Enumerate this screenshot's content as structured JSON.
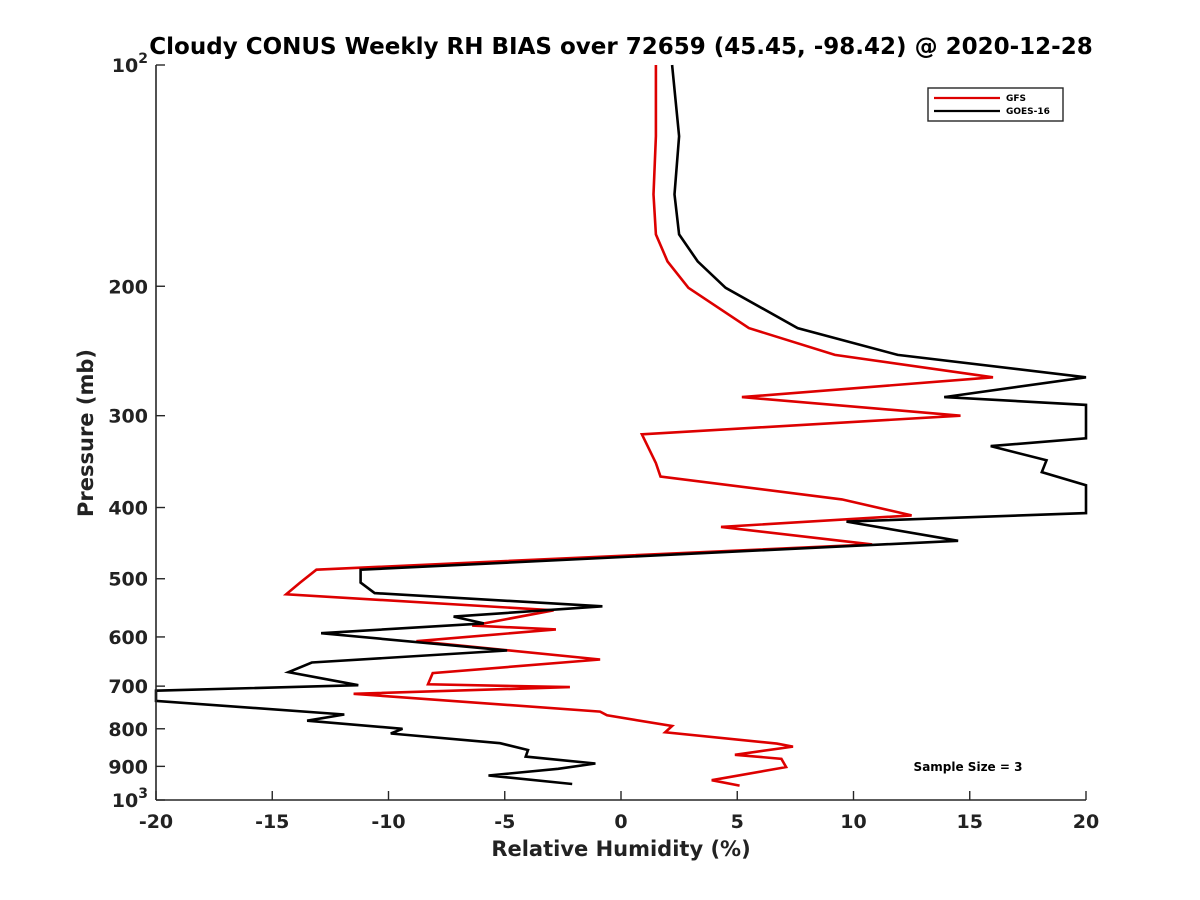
{
  "chart_data": {
    "type": "line",
    "title": "Cloudy CONUS Weekly RH BIAS over 72659 (45.45, -98.42) @ 2020-12-28",
    "xlabel": "Relative Humidity (%)",
    "ylabel": "Pressure (mb)",
    "xlim": [
      -20,
      20
    ],
    "ylim": [
      1000,
      100
    ],
    "y_scale": "log",
    "y_reversed": true,
    "grid": false,
    "legend_position": "top-right",
    "x_ticks": [
      {
        "value": -20,
        "label": "-20"
      },
      {
        "value": -15,
        "label": "-15"
      },
      {
        "value": -10,
        "label": "-10"
      },
      {
        "value": -5,
        "label": "-5"
      },
      {
        "value": 0,
        "label": "0"
      },
      {
        "value": 5,
        "label": "5"
      },
      {
        "value": 10,
        "label": "10"
      },
      {
        "value": 15,
        "label": "15"
      },
      {
        "value": 20,
        "label": "20"
      }
    ],
    "y_ticks": [
      {
        "value": 100,
        "base": "10",
        "exp": "2"
      },
      {
        "value": 200,
        "label": "200"
      },
      {
        "value": 300,
        "label": "300"
      },
      {
        "value": 400,
        "label": "400"
      },
      {
        "value": 500,
        "label": "500"
      },
      {
        "value": 600,
        "label": "600"
      },
      {
        "value": 700,
        "label": "700"
      },
      {
        "value": 800,
        "label": "800"
      },
      {
        "value": 900,
        "label": "900"
      },
      {
        "value": 1000,
        "base": "10",
        "exp": "3"
      }
    ],
    "annotation": "Sample Size = 3",
    "series": [
      {
        "name": "GFS",
        "color": "#dd0000",
        "points": [
          [
            1.5,
            100
          ],
          [
            1.5,
            125
          ],
          [
            1.4,
            150
          ],
          [
            1.5,
            170
          ],
          [
            2.0,
            185
          ],
          [
            2.9,
            201
          ],
          [
            5.5,
            228
          ],
          [
            9.2,
            248
          ],
          [
            16.0,
            266
          ],
          [
            5.2,
            283
          ],
          [
            14.6,
            300
          ],
          [
            0.9,
            318
          ],
          [
            1.5,
            348
          ],
          [
            1.7,
            363
          ],
          [
            9.5,
            390
          ],
          [
            12.5,
            410
          ],
          [
            4.3,
            425
          ],
          [
            10.8,
            449
          ],
          [
            -13.1,
            486
          ],
          [
            -13.8,
            506
          ],
          [
            -14.4,
            525
          ],
          [
            -2.9,
            552
          ],
          [
            -6.4,
            579
          ],
          [
            -2.8,
            586
          ],
          [
            -8.8,
            608
          ],
          [
            -0.9,
            644
          ],
          [
            -8.1,
            672
          ],
          [
            -8.3,
            696
          ],
          [
            -2.2,
            702
          ],
          [
            -11.5,
            717
          ],
          [
            -0.9,
            758
          ],
          [
            -0.6,
            767
          ],
          [
            2.2,
            793
          ],
          [
            1.9,
            809
          ],
          [
            6.7,
            838
          ],
          [
            7.4,
            846
          ],
          [
            4.9,
            868
          ],
          [
            6.9,
            879
          ],
          [
            7.1,
            902
          ],
          [
            3.9,
            940
          ],
          [
            5.1,
            956
          ]
        ]
      },
      {
        "name": "GOES-16",
        "color": "#000000",
        "points": [
          [
            2.2,
            100
          ],
          [
            2.5,
            125
          ],
          [
            2.3,
            150
          ],
          [
            2.5,
            170
          ],
          [
            3.3,
            185
          ],
          [
            4.5,
            201
          ],
          [
            7.6,
            228
          ],
          [
            11.9,
            248
          ],
          [
            20.0,
            266
          ],
          [
            13.9,
            283
          ],
          [
            20.0,
            290
          ],
          [
            20.0,
            322
          ],
          [
            15.9,
            330
          ],
          [
            18.3,
            345
          ],
          [
            18.1,
            358
          ],
          [
            20.0,
            373
          ],
          [
            20.0,
            407
          ],
          [
            9.7,
            418
          ],
          [
            14.5,
            444
          ],
          [
            -11.2,
            486
          ],
          [
            -11.2,
            506
          ],
          [
            -10.6,
            523
          ],
          [
            -0.8,
            545
          ],
          [
            -7.2,
            563
          ],
          [
            -5.9,
            575
          ],
          [
            -12.9,
            593
          ],
          [
            -4.9,
            626
          ],
          [
            -13.3,
            650
          ],
          [
            -14.3,
            670
          ],
          [
            -11.3,
            698
          ],
          [
            -20.0,
            710
          ],
          [
            -20.0,
            733
          ],
          [
            -11.9,
            765
          ],
          [
            -13.5,
            780
          ],
          [
            -9.4,
            800
          ],
          [
            -9.9,
            812
          ],
          [
            -5.2,
            837
          ],
          [
            -4.0,
            855
          ],
          [
            -4.1,
            873
          ],
          [
            -1.1,
            892
          ],
          [
            -2.7,
            907
          ],
          [
            -5.7,
            926
          ],
          [
            -2.1,
            951
          ]
        ]
      }
    ]
  }
}
